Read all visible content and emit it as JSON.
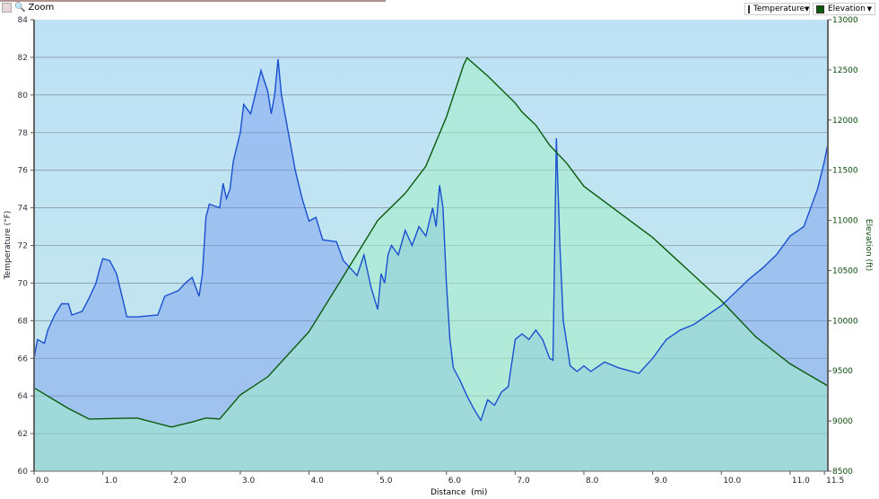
{
  "toolbar": {
    "zoom_label": "Zoom"
  },
  "selectors": [
    {
      "label": "Temperature",
      "color": "#1a4fd0"
    },
    {
      "label": "Elevation",
      "color": "#0b5a0b"
    }
  ],
  "chart_data": {
    "type": "area",
    "xlabel": "Distance  (mi)",
    "ylabel_left": "Temperature (°F)",
    "ylabel_right": "Elevation (ft)",
    "xlim": [
      0,
      11.55
    ],
    "ylim_left": [
      60,
      84
    ],
    "ylim_right": [
      8500,
      13000
    ],
    "x_ticks": [
      "0.0",
      "1.0",
      "2.0",
      "3.0",
      "4.0",
      "5.0",
      "6.0",
      "7.0",
      "8.0",
      "9.0",
      "10.0",
      "11.0",
      "11.5"
    ],
    "x_tick_values": [
      0,
      1,
      2,
      3,
      4,
      5,
      6,
      7,
      8,
      9,
      10,
      11,
      11.5
    ],
    "y_ticks_left": [
      "60",
      "62",
      "64",
      "66",
      "68",
      "70",
      "72",
      "74",
      "76",
      "78",
      "80",
      "82",
      "84"
    ],
    "y_ticks_right": [
      "8500",
      "9000",
      "9500",
      "10000",
      "10500",
      "11000",
      "11500",
      "12000",
      "12500",
      "13000"
    ],
    "grid": true,
    "series": [
      {
        "name": "Temperature",
        "axis": "left",
        "color": "#1a4fd0",
        "x": [
          0,
          0.05,
          0.15,
          0.2,
          0.3,
          0.4,
          0.5,
          0.55,
          0.7,
          0.8,
          0.9,
          0.95,
          1.0,
          1.1,
          1.2,
          1.3,
          1.35,
          1.5,
          1.8,
          1.9,
          2.1,
          2.2,
          2.3,
          2.4,
          2.45,
          2.5,
          2.55,
          2.7,
          2.75,
          2.8,
          2.85,
          2.9,
          3.0,
          3.05,
          3.15,
          3.25,
          3.3,
          3.4,
          3.45,
          3.5,
          3.55,
          3.6,
          3.7,
          3.8,
          3.9,
          4.0,
          4.1,
          4.2,
          4.4,
          4.5,
          4.6,
          4.7,
          4.8,
          4.9,
          5.0,
          5.05,
          5.1,
          5.15,
          5.2,
          5.3,
          5.4,
          5.5,
          5.6,
          5.7,
          5.8,
          5.85,
          5.9,
          5.95,
          6.0,
          6.05,
          6.1,
          6.2,
          6.3,
          6.4,
          6.5,
          6.6,
          6.7,
          6.8,
          6.9,
          7.0,
          7.1,
          7.2,
          7.3,
          7.4,
          7.5,
          7.55,
          7.6,
          7.65,
          7.7,
          7.8,
          7.9,
          8.0,
          8.1,
          8.3,
          8.5,
          8.7,
          8.8,
          9.0,
          9.2,
          9.4,
          9.6,
          9.8,
          10.0,
          10.2,
          10.4,
          10.6,
          10.8,
          11.0,
          11.2,
          11.4,
          11.5,
          11.55
        ],
        "values": [
          66.0,
          67.0,
          66.8,
          67.5,
          68.3,
          68.9,
          68.9,
          68.3,
          68.5,
          69.2,
          70.0,
          70.7,
          71.3,
          71.2,
          70.5,
          69.0,
          68.2,
          68.2,
          68.3,
          69.3,
          69.6,
          70.0,
          70.3,
          69.3,
          70.5,
          73.5,
          74.2,
          74.0,
          75.3,
          74.5,
          75.0,
          76.5,
          78.0,
          79.5,
          79.0,
          80.5,
          81.3,
          80.2,
          79.0,
          80.0,
          81.9,
          80.0,
          78.0,
          76.0,
          74.5,
          73.3,
          73.5,
          72.3,
          72.2,
          71.2,
          70.8,
          70.4,
          71.5,
          69.8,
          68.6,
          70.5,
          70.0,
          71.5,
          72.0,
          71.5,
          72.8,
          72.0,
          73.0,
          72.5,
          74.0,
          73.0,
          75.2,
          74.0,
          70.0,
          67.0,
          65.5,
          64.8,
          64.0,
          63.3,
          62.7,
          63.8,
          63.5,
          64.2,
          64.5,
          67.0,
          67.3,
          67.0,
          67.5,
          67.0,
          66.0,
          65.9,
          77.7,
          72.0,
          68.0,
          65.6,
          65.3,
          65.6,
          65.3,
          65.8,
          65.5,
          65.3,
          65.2,
          66.0,
          67.0,
          67.5,
          67.8,
          68.3,
          68.8,
          69.5,
          70.2,
          70.8,
          71.5,
          72.5,
          73.0,
          75.0,
          76.5,
          77.4
        ]
      },
      {
        "name": "Elevation",
        "axis": "right",
        "color": "#0b5a0b",
        "x": [
          0,
          0.5,
          0.8,
          1.5,
          2.0,
          2.3,
          2.5,
          2.7,
          3.0,
          3.4,
          4.0,
          4.4,
          5.0,
          5.4,
          5.7,
          6.0,
          6.25,
          6.3,
          6.6,
          7.0,
          7.1,
          7.3,
          7.5,
          7.75,
          8.0,
          9.0,
          10.0,
          10.5,
          11.0,
          11.55
        ],
        "values": [
          9330,
          9125,
          9020,
          9030,
          8940,
          8990,
          9030,
          9020,
          9260,
          9440,
          9890,
          10330,
          11000,
          11270,
          11540,
          12030,
          12550,
          12620,
          12440,
          12170,
          12080,
          11950,
          11750,
          11570,
          11340,
          10830,
          10200,
          9840,
          9570,
          9350
        ]
      }
    ]
  }
}
